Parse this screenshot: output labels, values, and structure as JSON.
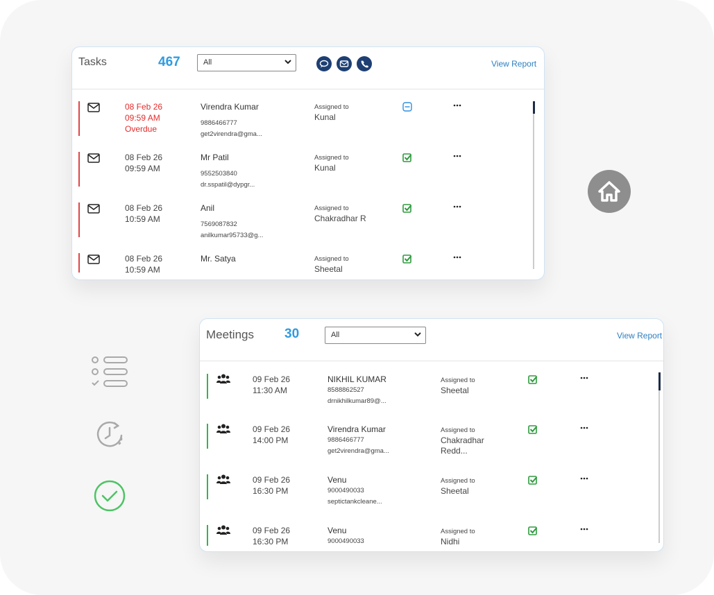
{
  "tasks": {
    "title": "Tasks",
    "count": 467,
    "filter": "All",
    "view_report": "View Report",
    "rows": [
      {
        "date": "08 Feb 26",
        "time": "09:59 AM",
        "status": "Overdue",
        "name": "Virendra Kumar",
        "phone": "9886466777",
        "email": "get2virendra@gma...",
        "assigned_label": "Assigned to",
        "assignee": "Kunal"
      },
      {
        "date": "08 Feb 26",
        "time": "09:59 AM",
        "name": "Mr Patil",
        "phone": "9552503840",
        "email": "dr.sspatil@dypgr...",
        "assigned_label": "Assigned to",
        "assignee": "Kunal"
      },
      {
        "date": "08 Feb 26",
        "time": "10:59 AM",
        "name": "Anil",
        "phone": "7569087832",
        "email": "anilkumar95733@g...",
        "assigned_label": "Assigned to",
        "assignee": "Chakradhar R"
      },
      {
        "date": "08 Feb 26",
        "time": "10:59 AM",
        "name": "Mr. Satya",
        "assigned_label": "Assigned to",
        "assignee": "Sheetal"
      }
    ]
  },
  "meetings": {
    "title": "Meetings",
    "count": 30,
    "filter": "All",
    "view_report": "View Report",
    "rows": [
      {
        "date": "09 Feb 26",
        "time": "11:30 AM",
        "name": "NIKHIL KUMAR",
        "phone": "8588862527",
        "email": "drnikhilkumar89@...",
        "assigned_label": "Assigned to",
        "assignee": "Sheetal"
      },
      {
        "date": "09 Feb 26",
        "time": "14:00 PM",
        "name": "Virendra Kumar",
        "phone": "9886466777",
        "email": "get2virendra@gma...",
        "assigned_label": "Assigned to",
        "assignee": "Chakradhar Redd..."
      },
      {
        "date": "09 Feb 26",
        "time": "16:30 PM",
        "name": "Venu",
        "phone": "9000490033",
        "email": "septictankcleane...",
        "assigned_label": "Assigned to",
        "assignee": "Sheetal"
      },
      {
        "date": "09 Feb 26",
        "time": "16:30 PM",
        "name": "Venu",
        "phone": "9000490033",
        "assigned_label": "Assigned to",
        "assignee": "Nidhi"
      }
    ]
  }
}
